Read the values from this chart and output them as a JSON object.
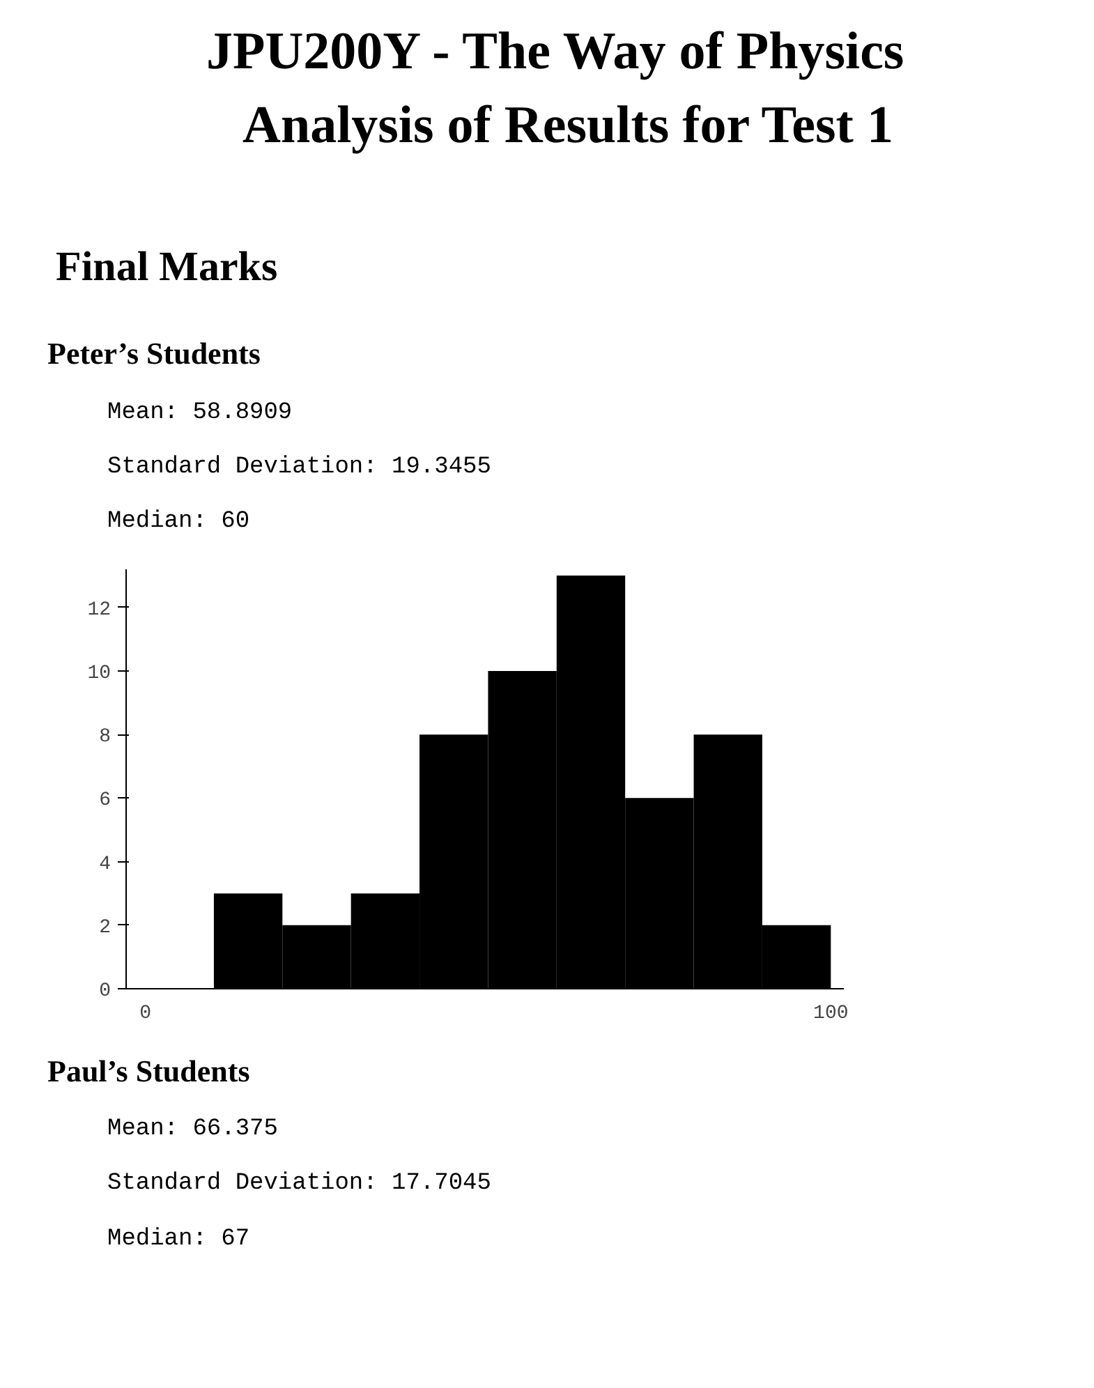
{
  "chart_data": {
    "type": "histogram",
    "title": "JPU200Y - The Way of Physics",
    "subtitle": "Analysis of Results for Test 1",
    "annotations": [
      "Final Marks",
      "Peter’s Students",
      "Mean: 58.8909",
      "Standard Deviation: 19.3455",
      "Median: 60",
      "Paul’s Students",
      "Mean: 66.375",
      "Standard Deviation: 17.7045",
      "Median: 67"
    ],
    "bins": [
      0,
      10,
      20,
      30,
      40,
      50,
      60,
      70,
      80,
      90,
      100
    ],
    "values": [
      0,
      3,
      2,
      3,
      8,
      10,
      13,
      6,
      8,
      2
    ],
    "color": "#000000",
    "xlim": [
      -2.8,
      101.9
    ],
    "ylim": [
      0,
      13.2
    ],
    "xticks": [
      0,
      100
    ],
    "yticks": [
      0,
      2,
      4,
      6,
      8,
      10,
      12
    ],
    "grid": false
  }
}
